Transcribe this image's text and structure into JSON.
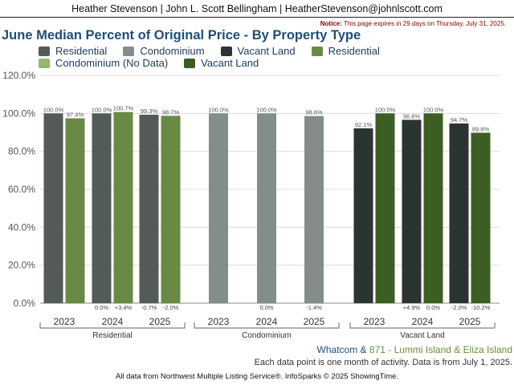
{
  "header": {
    "text": "Heather Stevenson | John L. Scott Bellingham | HeatherStevenson@johnlscott.com"
  },
  "notice": {
    "label": "Notice:",
    "text": "This page expires in 29 days on Thursday, July 31, 2025."
  },
  "chart_data": {
    "type": "bar",
    "title": "June Median Percent of Original Price - By Property Type",
    "ylim": [
      0,
      120
    ],
    "yticks": [
      "0.0%",
      "20.0%",
      "40.0%",
      "60.0%",
      "80.0%",
      "100.0%",
      "120.0%"
    ],
    "grid": true,
    "legend_position": "top",
    "legend": [
      {
        "name": "Residential",
        "color": "#535b59"
      },
      {
        "name": "Condominium",
        "color": "#838e8c"
      },
      {
        "name": "Vacant Land",
        "color": "#2c3432"
      },
      {
        "name": "Residential",
        "color": "#688a45"
      },
      {
        "name": "Condominium (No Data)",
        "color": "#93b86d"
      },
      {
        "name": "Vacant Land",
        "color": "#3d5e22"
      }
    ],
    "groups": [
      {
        "name": "Residential",
        "years": [
          {
            "year": "2023",
            "bars": [
              {
                "value": 100.0,
                "label": "100.0%",
                "color": "#535b59"
              },
              {
                "value": 97.4,
                "label": "97.4%",
                "color": "#688a45"
              }
            ],
            "changes": [
              "",
              ""
            ]
          },
          {
            "year": "2024",
            "bars": [
              {
                "value": 100.0,
                "label": "100.0%",
                "color": "#535b59"
              },
              {
                "value": 100.7,
                "label": "100.7%",
                "color": "#688a45"
              }
            ],
            "changes": [
              "0.0%",
              "+3.4%"
            ]
          },
          {
            "year": "2025",
            "bars": [
              {
                "value": 99.3,
                "label": "99.3%",
                "color": "#535b59"
              },
              {
                "value": 98.7,
                "label": "98.7%",
                "color": "#688a45"
              }
            ],
            "changes": [
              "-0.7%",
              "-2.0%"
            ]
          }
        ]
      },
      {
        "name": "Condominium",
        "years": [
          {
            "year": "2023",
            "bars": [
              {
                "value": 100.0,
                "label": "100.0%",
                "color": "#838e8c"
              }
            ],
            "changes": [
              ""
            ]
          },
          {
            "year": "2024",
            "bars": [
              {
                "value": 100.0,
                "label": "100.0%",
                "color": "#838e8c"
              }
            ],
            "changes": [
              "0.0%"
            ]
          },
          {
            "year": "2025",
            "bars": [
              {
                "value": 98.6,
                "label": "98.6%",
                "color": "#838e8c"
              }
            ],
            "changes": [
              "-1.4%"
            ]
          }
        ]
      },
      {
        "name": "Vacant Land",
        "years": [
          {
            "year": "2023",
            "bars": [
              {
                "value": 92.1,
                "label": "92.1%",
                "color": "#2c3432"
              },
              {
                "value": 100.0,
                "label": "100.0%",
                "color": "#3d5e22"
              }
            ],
            "changes": [
              "",
              ""
            ]
          },
          {
            "year": "2024",
            "bars": [
              {
                "value": 96.6,
                "label": "96.6%",
                "color": "#2c3432"
              },
              {
                "value": 100.0,
                "label": "100.0%",
                "color": "#3d5e22"
              }
            ],
            "changes": [
              "+4.9%",
              "0.0%"
            ]
          },
          {
            "year": "2025",
            "bars": [
              {
                "value": 94.7,
                "label": "94.7%",
                "color": "#2c3432"
              },
              {
                "value": 89.8,
                "label": "89.8%",
                "color": "#3d5e22"
              }
            ],
            "changes": [
              "-2.0%",
              "-10.2%"
            ]
          }
        ]
      }
    ]
  },
  "geo": {
    "area1": "Whatcom",
    "amp": "&",
    "area2": "871 - Lummi Island & Eliza Island"
  },
  "note": {
    "text": "Each data point is one month of activity. Data is from July 1, 2025."
  },
  "footer": {
    "text": "All data from Northwest Multiple Listing Service®. InfoSparks © 2025 ShowingTime."
  }
}
